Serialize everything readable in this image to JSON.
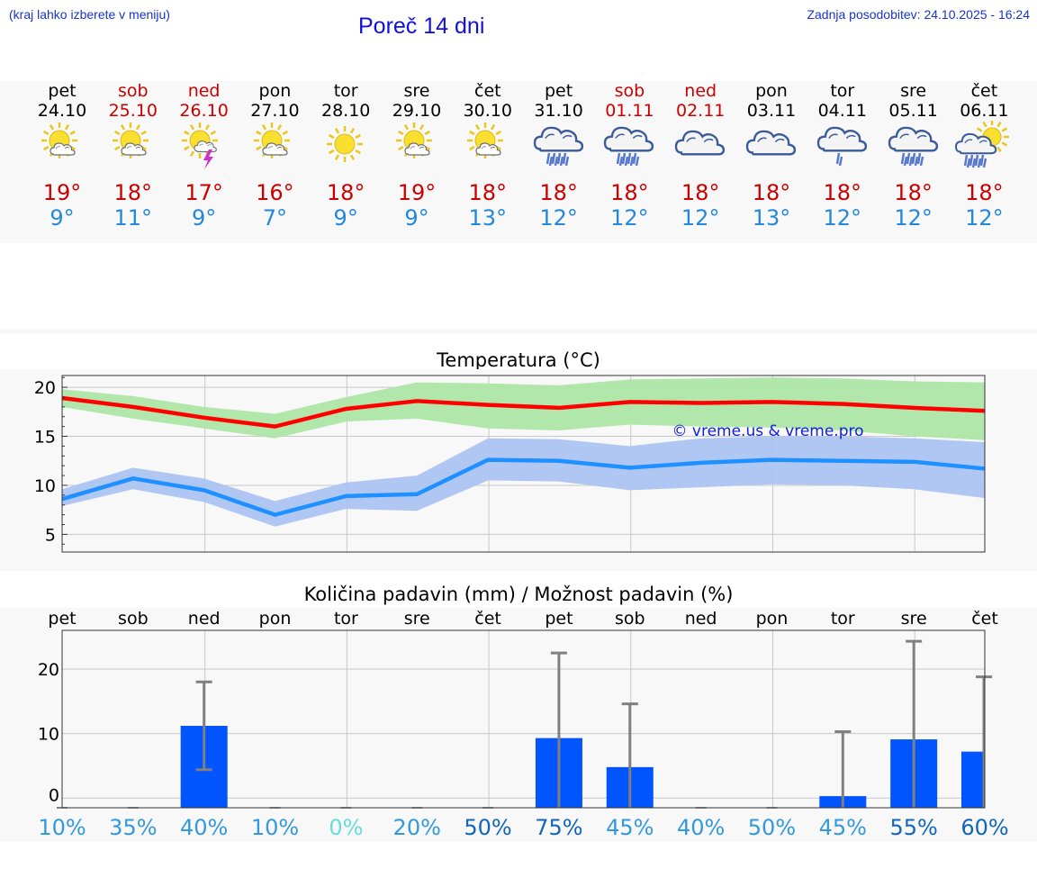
{
  "header": {
    "hint": "(kraj lahko izberete v meniju)",
    "title": "Poreč 14 dni",
    "updated": "Zadnja posodobitev: 24.10.2025 - 16:24"
  },
  "days": [
    {
      "name": "pet",
      "date": "24.10",
      "weekend": false,
      "icon": "sun-cloud-icon",
      "max": "19°",
      "min": "9°"
    },
    {
      "name": "sob",
      "date": "25.10",
      "weekend": true,
      "icon": "sun-cloud-icon",
      "max": "18°",
      "min": "11°"
    },
    {
      "name": "ned",
      "date": "26.10",
      "weekend": true,
      "icon": "sun-thunder-icon",
      "max": "17°",
      "min": "9°"
    },
    {
      "name": "pon",
      "date": "27.10",
      "weekend": false,
      "icon": "sun-cloud-icon",
      "max": "16°",
      "min": "7°"
    },
    {
      "name": "tor",
      "date": "28.10",
      "weekend": false,
      "icon": "sun-icon",
      "max": "18°",
      "min": "9°"
    },
    {
      "name": "sre",
      "date": "29.10",
      "weekend": false,
      "icon": "sun-cloud-icon",
      "max": "19°",
      "min": "9°"
    },
    {
      "name": "čet",
      "date": "30.10",
      "weekend": false,
      "icon": "sun-cloud-icon",
      "max": "18°",
      "min": "13°"
    },
    {
      "name": "pet",
      "date": "31.10",
      "weekend": false,
      "icon": "cloud-rain-icon",
      "max": "18°",
      "min": "12°"
    },
    {
      "name": "sob",
      "date": "01.11",
      "weekend": true,
      "icon": "cloud-rain-icon",
      "max": "18°",
      "min": "12°"
    },
    {
      "name": "ned",
      "date": "02.11",
      "weekend": true,
      "icon": "cloud-icon",
      "max": "18°",
      "min": "12°"
    },
    {
      "name": "pon",
      "date": "03.11",
      "weekend": false,
      "icon": "cloud-icon",
      "max": "18°",
      "min": "13°"
    },
    {
      "name": "tor",
      "date": "04.11",
      "weekend": false,
      "icon": "cloud-light-rain-icon",
      "max": "18°",
      "min": "12°"
    },
    {
      "name": "sre",
      "date": "05.11",
      "weekend": false,
      "icon": "cloud-rain-icon",
      "max": "18°",
      "min": "12°"
    },
    {
      "name": "čet",
      "date": "06.11",
      "weekend": false,
      "icon": "sun-cloud-rain-icon",
      "max": "18°",
      "min": "12°"
    }
  ],
  "colors": {
    "max_line": "#ff0000",
    "max_band": "#aee6a8",
    "min_line": "#1e90ff",
    "min_band": "#adc4f2",
    "precip_bar": "#0055ff",
    "error_bar": "#808080",
    "weekend_text": "#cc0000"
  },
  "chart_data": [
    {
      "type": "line",
      "title": "Temperatura (°C)",
      "watermark": "© vreme.us & vreme.pro",
      "ylim": [
        3.2,
        21.2
      ],
      "yticks": [
        "20",
        "15",
        "10",
        "5"
      ],
      "grid": true,
      "series": [
        {
          "x": [
            0,
            1,
            2,
            3,
            4,
            5,
            6,
            7,
            8,
            9,
            10,
            11,
            12,
            13
          ],
          "values": [
            18.9,
            18.0,
            16.9,
            16.0,
            17.8,
            18.6,
            18.2,
            17.9,
            18.5,
            18.4,
            18.5,
            18.3,
            17.9,
            17.6
          ],
          "band_low": [
            18.0,
            16.8,
            15.8,
            14.8,
            16.5,
            16.8,
            15.8,
            15.6,
            16.2,
            16.0,
            15.9,
            15.6,
            15.0,
            14.6
          ],
          "band_high": [
            19.8,
            19.1,
            18.0,
            17.3,
            19.0,
            20.5,
            20.4,
            20.2,
            20.8,
            20.9,
            21.0,
            20.9,
            20.6,
            20.5
          ]
        },
        {
          "x": [
            0,
            1,
            2,
            3,
            4,
            5,
            6,
            7,
            8,
            9,
            10,
            11,
            12,
            13
          ],
          "values": [
            8.6,
            10.7,
            9.5,
            7.0,
            8.9,
            9.1,
            12.6,
            12.5,
            11.8,
            12.3,
            12.6,
            12.5,
            12.4,
            11.7
          ],
          "band_low": [
            7.9,
            9.6,
            8.3,
            5.8,
            7.6,
            7.4,
            10.5,
            10.4,
            9.5,
            9.8,
            10.1,
            10.0,
            9.6,
            8.7
          ],
          "band_high": [
            9.6,
            11.8,
            10.7,
            8.4,
            10.3,
            11.0,
            14.8,
            14.7,
            14.0,
            14.8,
            15.0,
            15.0,
            14.8,
            14.4
          ]
        }
      ]
    },
    {
      "type": "bar",
      "title": "Količina padavin (mm) / Možnost padavin (%)",
      "categories": [
        "pet",
        "sob",
        "ned",
        "pon",
        "tor",
        "sre",
        "čet",
        "pet",
        "sob",
        "ned",
        "pon",
        "tor",
        "sre",
        "čet"
      ],
      "ylim": [
        -1.5,
        26
      ],
      "yticks": [
        "20",
        "10",
        "0"
      ],
      "grid": true,
      "values": [
        0,
        0,
        11.2,
        0,
        0,
        0,
        0,
        9.3,
        4.8,
        0,
        0,
        0.3,
        9.1,
        7.2
      ],
      "error_high": [
        0,
        0,
        18.0,
        0,
        0,
        0,
        0,
        22.5,
        14.6,
        0,
        0,
        10.3,
        24.3,
        18.8
      ],
      "error_low": [
        0,
        0,
        4.4,
        0,
        0,
        0,
        0,
        0,
        0,
        0,
        0,
        0,
        0,
        0
      ],
      "probabilities": [
        "10%",
        "35%",
        "40%",
        "10%",
        "0%",
        "20%",
        "50%",
        "75%",
        "45%",
        "40%",
        "50%",
        "45%",
        "55%",
        "60%"
      ],
      "probability_colors": [
        "#3399dd",
        "#3399dd",
        "#3399dd",
        "#3399dd",
        "#66dddd",
        "#3399dd",
        "#1166bb",
        "#1166bb",
        "#3399dd",
        "#3399dd",
        "#3399dd",
        "#3399dd",
        "#1166bb",
        "#1166bb"
      ]
    }
  ]
}
